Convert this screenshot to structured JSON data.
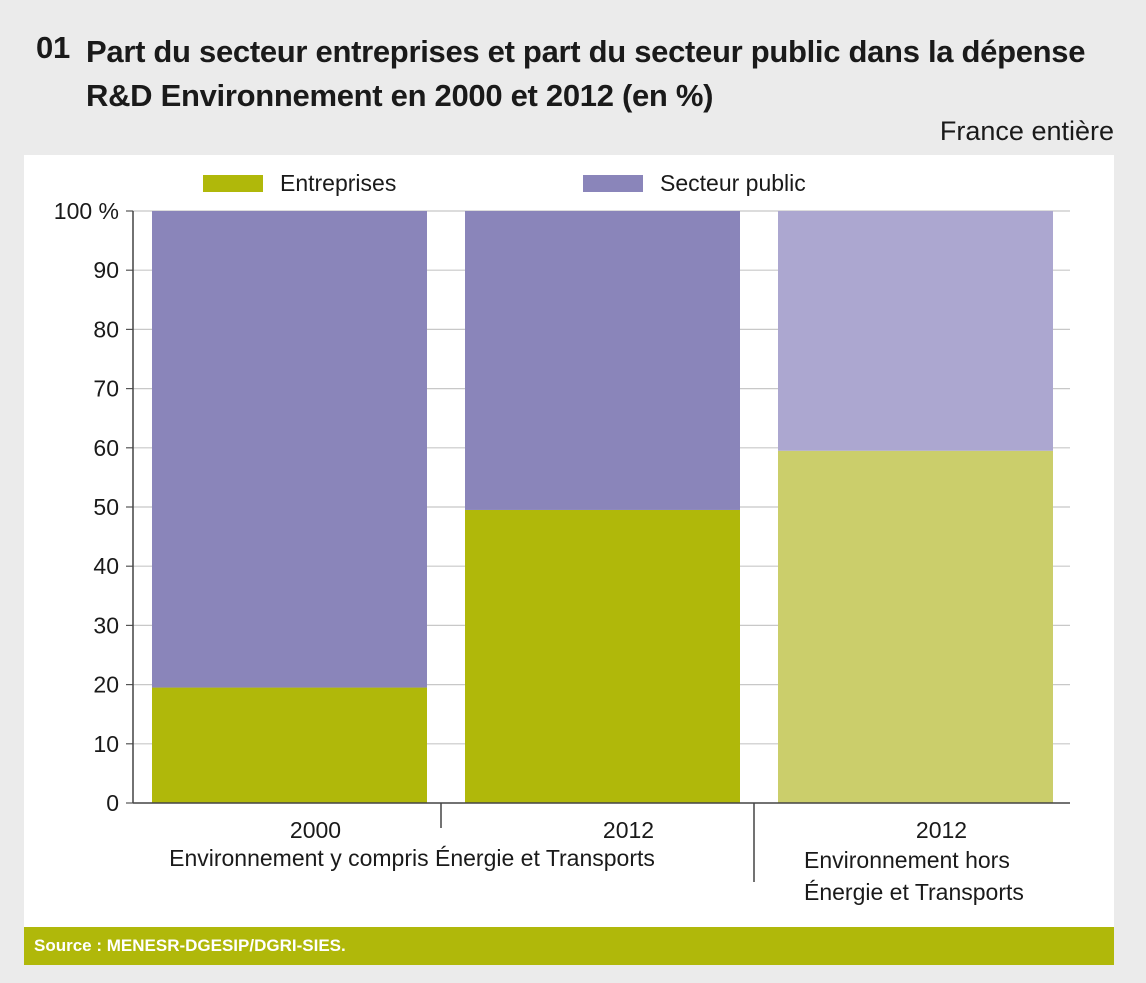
{
  "header": {
    "number": "01",
    "title": "Part du secteur entreprises et part du secteur public dans la dépense R&D Environnement en 2000 et 2012 (en %)",
    "subtitle": "France entière"
  },
  "source": "Source : MENESR-DGESIP/DGRI-SIES.",
  "colors": {
    "entreprises": "#b0b80a",
    "secteur_public": "#8a85ba",
    "entreprises_light": "#cbce6b",
    "secteur_public_light": "#aca7d0"
  },
  "chart_data": {
    "type": "bar",
    "stacked": true,
    "categories": [
      "2000",
      "2012",
      "2012"
    ],
    "group_labels": [
      {
        "label": "Environnement y compris Énergie et Transports",
        "categories": [
          0,
          1
        ]
      },
      {
        "label": "Environnement hors Énergie et Transports",
        "categories": [
          2
        ]
      }
    ],
    "series": [
      {
        "name": "Entreprises",
        "values": [
          19.5,
          49.5,
          59.5
        ]
      },
      {
        "name": "Secteur public",
        "values": [
          80.5,
          50.5,
          40.5
        ]
      }
    ],
    "ylim": [
      0,
      100
    ],
    "yticks": [
      0,
      10,
      20,
      30,
      40,
      50,
      60,
      70,
      80,
      90,
      100
    ],
    "ytick_labels": [
      "0",
      "10",
      "20",
      "30",
      "40",
      "50",
      "60",
      "70",
      "80",
      "90",
      "100 %"
    ],
    "grid": true,
    "legend": "top"
  }
}
